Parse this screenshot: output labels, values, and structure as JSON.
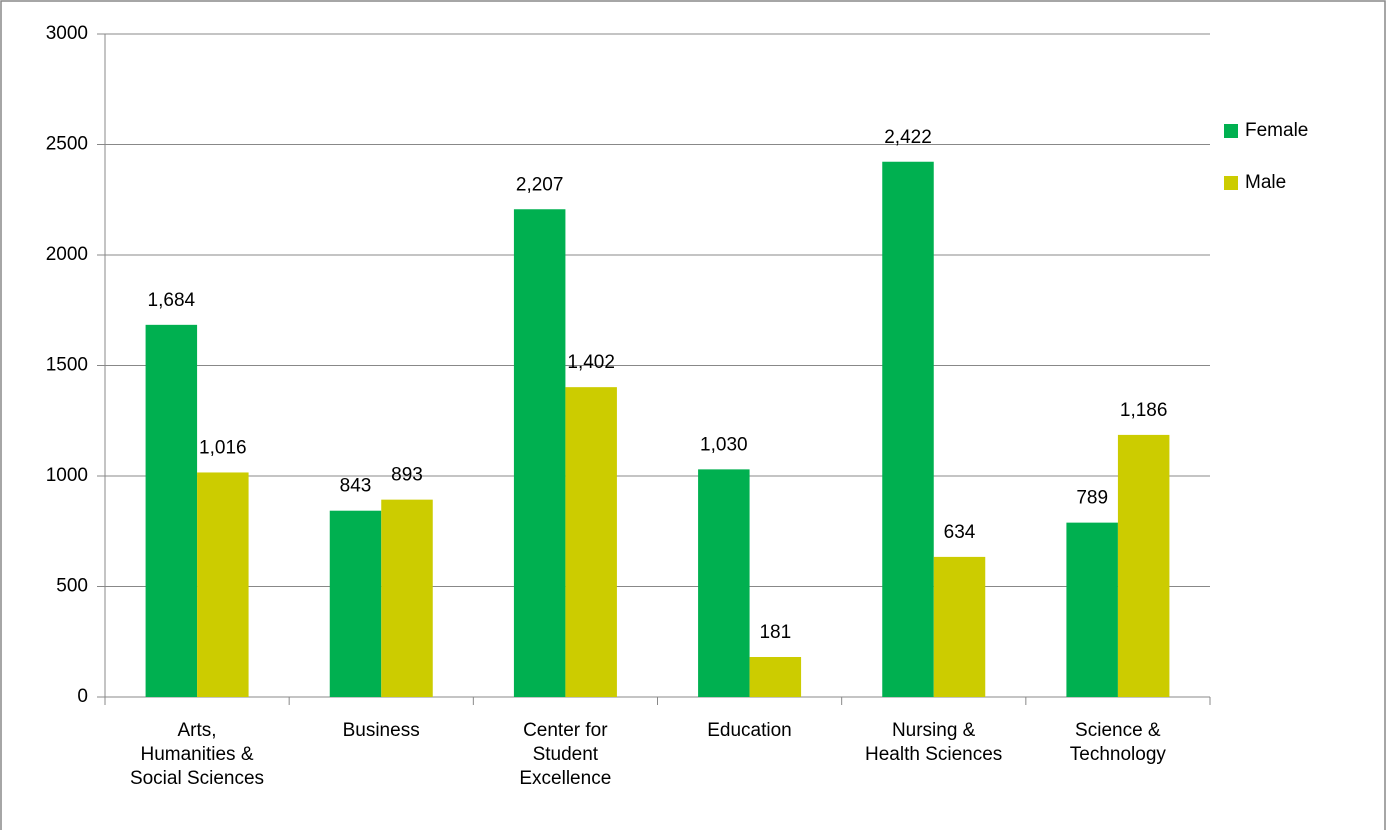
{
  "chart_data": {
    "type": "grouped_bar",
    "categories": [
      "Arts,\nHumanities &\nSocial Sciences",
      "Business",
      "Center for\nStudent\nExcellence",
      "Education",
      "Nursing &\nHealth Sciences",
      "Science &\nTechnology"
    ],
    "series": [
      {
        "name": "Female",
        "color": "#00b050",
        "values": [
          1684,
          843,
          2207,
          1030,
          2422,
          789
        ],
        "value_labels": [
          "1,684",
          "843",
          "2,207",
          "1,030",
          "2,422",
          "789"
        ]
      },
      {
        "name": "Male",
        "color": "#cccc00",
        "values": [
          1016,
          893,
          1402,
          181,
          634,
          1186
        ],
        "value_labels": [
          "1,016",
          "893",
          "1,402",
          "181",
          "634",
          "1,186"
        ]
      }
    ],
    "ylim": [
      0,
      3000
    ],
    "yticks": [
      0,
      500,
      1000,
      1500,
      2000,
      2500,
      3000
    ],
    "grid": true,
    "legend": "right"
  }
}
